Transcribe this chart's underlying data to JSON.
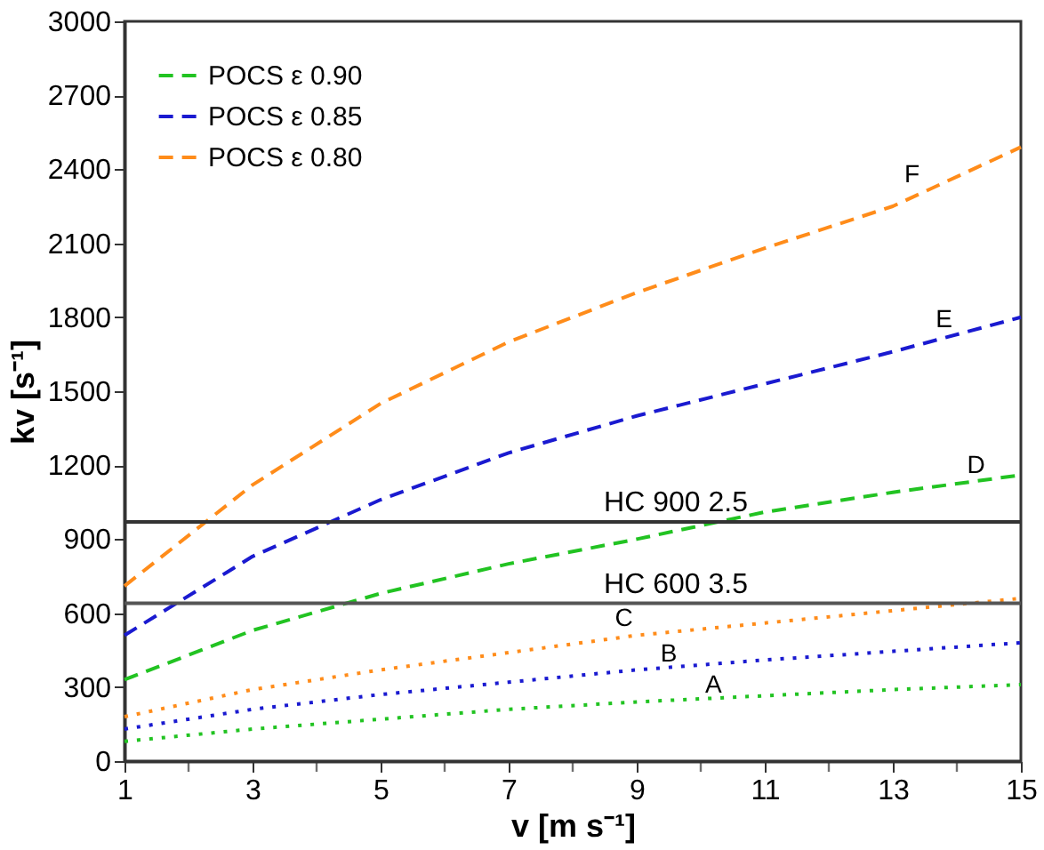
{
  "chart_data": {
    "type": "line",
    "xlabel": "v [m s⁻¹]",
    "ylabel": "kv [s⁻¹]",
    "x": [
      1,
      3,
      5,
      7,
      9,
      11,
      13,
      15
    ],
    "series": [
      {
        "name": "POCS ε 0.90",
        "color": "#22c322",
        "line_style": "dashed",
        "values": [
          330,
          530,
          680,
          800,
          900,
          1010,
          1090,
          1160
        ]
      },
      {
        "name": "POCS ε 0.85",
        "color": "#1a1ad0",
        "line_style": "dashed",
        "values": [
          510,
          830,
          1060,
          1250,
          1400,
          1530,
          1660,
          1800
        ]
      },
      {
        "name": "POCS ε 0.80",
        "color": "#ff8c1a",
        "line_style": "dashed",
        "values": [
          710,
          1120,
          1450,
          1700,
          1900,
          2080,
          2250,
          2490
        ]
      },
      {
        "color": "#22c322",
        "line_style": "dotted",
        "values": [
          80,
          130,
          170,
          210,
          240,
          265,
          290,
          310
        ]
      },
      {
        "color": "#1a1ad0",
        "line_style": "dotted",
        "values": [
          130,
          210,
          270,
          320,
          370,
          410,
          445,
          480
        ]
      },
      {
        "color": "#ff8c1a",
        "line_style": "dotted",
        "values": [
          180,
          290,
          370,
          440,
          510,
          560,
          610,
          660
        ]
      }
    ],
    "ref_lines": [
      {
        "axis": "y",
        "value": 970,
        "label": "HC 900 2.5",
        "color": "#333333"
      },
      {
        "axis": "y",
        "value": 640,
        "label": "HC 600 3.5",
        "color": "#555555"
      }
    ],
    "annotations": [
      {
        "text": "A",
        "x": 10.2,
        "y": 250
      },
      {
        "text": "B",
        "x": 9.5,
        "y": 375
      },
      {
        "text": "C",
        "x": 8.8,
        "y": 520
      },
      {
        "text": "D",
        "x": 14.3,
        "y": 1140
      },
      {
        "text": "E",
        "x": 13.8,
        "y": 1730
      },
      {
        "text": "F",
        "x": 13.3,
        "y": 2320
      }
    ],
    "xlim": [
      1,
      15
    ],
    "xticks": [
      1,
      {
        "value": 2,
        "label": null
      },
      3,
      {
        "value": 4,
        "label": null
      },
      5,
      {
        "value": 6,
        "label": null
      },
      7,
      {
        "value": 8,
        "label": null
      },
      9,
      {
        "value": 10,
        "label": null
      },
      11,
      {
        "value": 12,
        "label": null
      },
      13,
      {
        "value": 14,
        "label": null
      },
      15
    ],
    "ylim": [
      0,
      3000
    ],
    "yticks": [
      0,
      300,
      600,
      900,
      1200,
      1500,
      1800,
      2100,
      2400,
      2700,
      3000
    ],
    "grid": false,
    "legend": "top left",
    "marker": "none"
  }
}
